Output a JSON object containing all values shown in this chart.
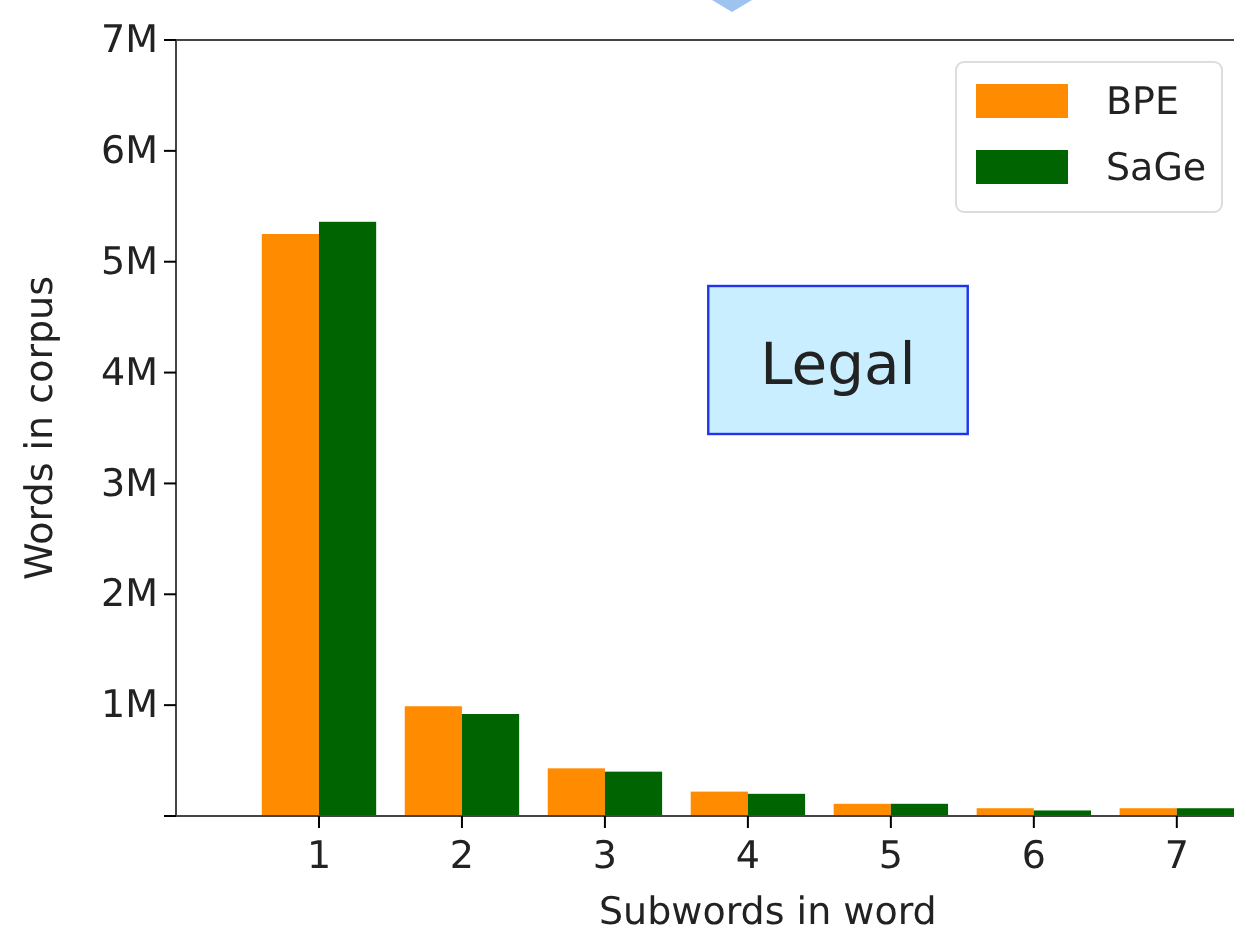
{
  "chart_data": {
    "type": "bar",
    "xlabel": "Subwords in word",
    "ylabel": "Words in corpus",
    "categories": [
      "1",
      "2",
      "3",
      "4",
      "5",
      "6",
      "7"
    ],
    "series": [
      {
        "name": "BPE",
        "color": "#ff8c00",
        "values": [
          5250000,
          990000,
          430000,
          220000,
          110000,
          70000,
          70000
        ]
      },
      {
        "name": "SaGe",
        "color": "#006400",
        "values": [
          5360000,
          920000,
          400000,
          200000,
          110000,
          50000,
          70000
        ]
      }
    ],
    "ylim": [
      0,
      7000000
    ],
    "yticks": [
      {
        "value": 0,
        "label": null
      },
      {
        "value": 1000000,
        "label": "1M"
      },
      {
        "value": 2000000,
        "label": "2M"
      },
      {
        "value": 3000000,
        "label": "3M"
      },
      {
        "value": 4000000,
        "label": "4M"
      },
      {
        "value": 5000000,
        "label": "5M"
      },
      {
        "value": 6000000,
        "label": "6M"
      },
      {
        "value": 7000000,
        "label": "7M"
      }
    ],
    "annotations": [
      "Legal"
    ],
    "legend": "top right",
    "grid": false
  }
}
